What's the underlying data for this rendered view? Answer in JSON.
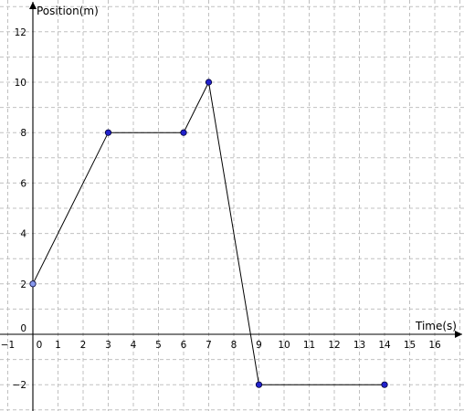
{
  "chart_data": {
    "type": "line",
    "xlabel": "Time(s)",
    "ylabel": "Position(m)",
    "xlim": [
      -1,
      17
    ],
    "ylim": [
      -3,
      13
    ],
    "x_ticks": [
      -1,
      0,
      1,
      2,
      3,
      4,
      5,
      6,
      7,
      8,
      9,
      10,
      11,
      12,
      13,
      14,
      15,
      16
    ],
    "y_ticks": [
      -2,
      0,
      2,
      4,
      6,
      8,
      10,
      12
    ],
    "grid": true,
    "series": [
      {
        "x": [
          0,
          3,
          6,
          7,
          9,
          14
        ],
        "y": [
          2,
          8,
          8,
          10,
          -2,
          -2
        ],
        "color": "#000000",
        "marker_color": "#2222cc"
      }
    ]
  }
}
